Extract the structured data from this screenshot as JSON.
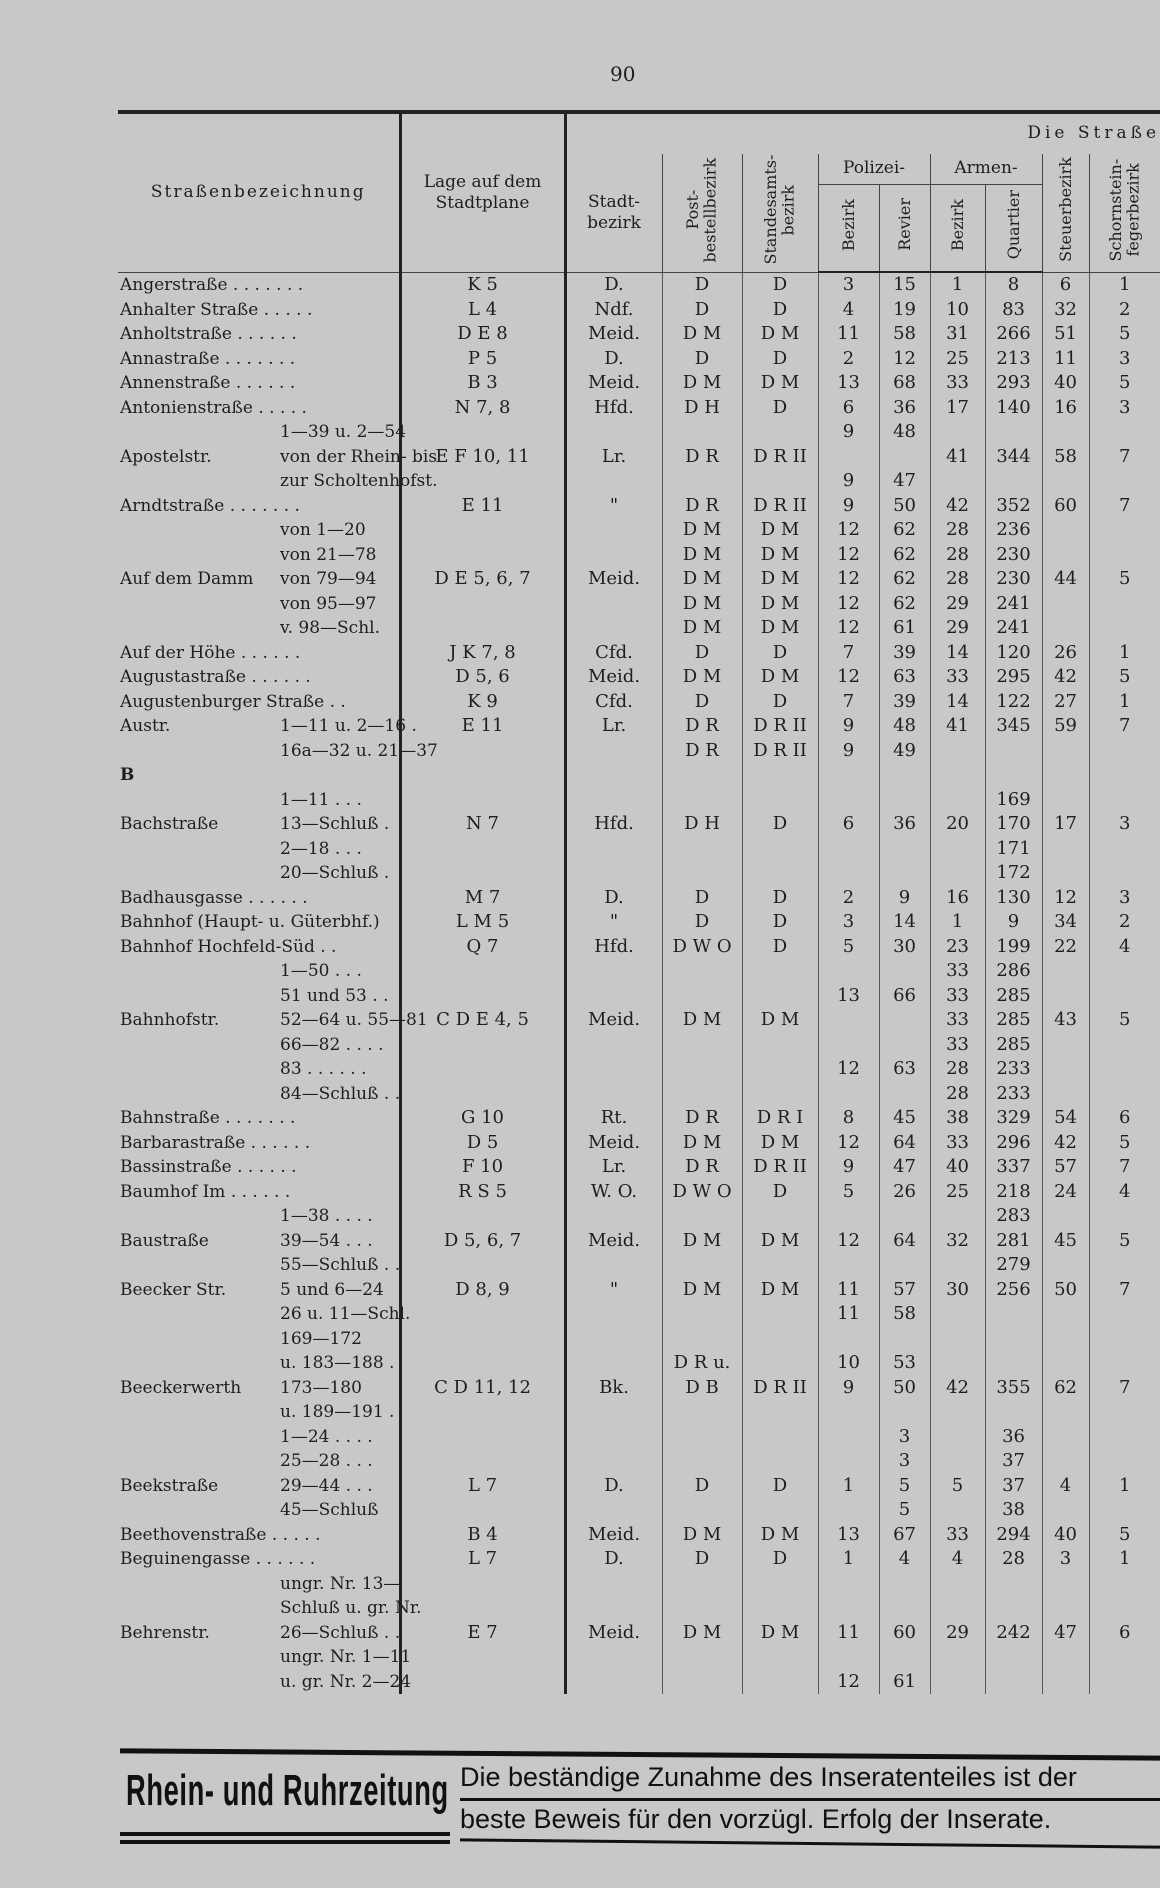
{
  "page_number": "90",
  "header": {
    "group_title": "Die Straße",
    "col_name": "Straßenbezeichnung",
    "col_lage": "Lage auf dem Stadtplane",
    "col_stadt": "Stadt- bezirk",
    "col_post": "Post- bestellbezirk",
    "col_standes": "Standesamts- bezirk",
    "polizei": "Polizei-",
    "polizei_bezirk": "Bezirk",
    "polizei_revier": "Revier",
    "armen": "Armen-",
    "armen_bezirk": "Bezirk",
    "armen_quartier": "Quartier",
    "col_steuer": "Steuerbezirk",
    "col_schorn": "Schornstein- fegerbezirk"
  },
  "rows": [
    [
      "Angerstraße . . . . . . .",
      "",
      "K 5",
      "D.",
      "D",
      "D",
      "3",
      "15",
      "1",
      "8",
      "6",
      "1"
    ],
    [
      "Anhalter Straße . . . . .",
      "",
      "L 4",
      "Ndf.",
      "D",
      "D",
      "4",
      "19",
      "10",
      "83",
      "32",
      "2"
    ],
    [
      "Anholtstraße . . . . . .",
      "",
      "D E 8",
      "Meid.",
      "D M",
      "D M",
      "11",
      "58",
      "31",
      "266",
      "51",
      "5"
    ],
    [
      "Annastraße . . . . . . .",
      "",
      "P 5",
      "D.",
      "D",
      "D",
      "2",
      "12",
      "25",
      "213",
      "11",
      "3"
    ],
    [
      "Annenstraße . . . . . .",
      "",
      "B 3",
      "Meid.",
      "D M",
      "D M",
      "13",
      "68",
      "33",
      "293",
      "40",
      "5"
    ],
    [
      "Antonienstraße . . . . .",
      "",
      "N 7, 8",
      "Hfd.",
      "D H",
      "D",
      "6",
      "36",
      "17",
      "140",
      "16",
      "3"
    ],
    [
      "",
      "1—39 u. 2—54",
      "",
      "",
      "",
      "",
      "9",
      "48",
      "",
      "",
      "",
      ""
    ],
    [
      "Apostelstr.",
      "von der Rhein- bis",
      "E F 10, 11",
      "Lr.",
      "D R",
      "D R II",
      "",
      "",
      "41",
      "344",
      "58",
      "7"
    ],
    [
      "",
      "zur Scholtenhofst.",
      "",
      "",
      "",
      "",
      "9",
      "47",
      "",
      "",
      "",
      ""
    ],
    [
      "Arndtstraße . . . . . . .",
      "",
      "E 11",
      "\"",
      "D R",
      "D R II",
      "9",
      "50",
      "42",
      "352",
      "60",
      "7"
    ],
    [
      "",
      "von 1—20",
      "",
      "",
      "D M",
      "D M",
      "12",
      "62",
      "28",
      "236",
      "",
      ""
    ],
    [
      "",
      "von 21—78",
      "",
      "",
      "D M",
      "D M",
      "12",
      "62",
      "28",
      "230",
      "",
      ""
    ],
    [
      "Auf dem Damm",
      "von 79—94",
      "D E 5, 6, 7",
      "Meid.",
      "D M",
      "D M",
      "12",
      "62",
      "28",
      "230",
      "44",
      "5"
    ],
    [
      "",
      "von 95—97",
      "",
      "",
      "D M",
      "D M",
      "12",
      "62",
      "29",
      "241",
      "",
      ""
    ],
    [
      "",
      "v. 98—Schl.",
      "",
      "",
      "D M",
      "D M",
      "12",
      "61",
      "29",
      "241",
      "",
      ""
    ],
    [
      "Auf der Höhe . . . . . .",
      "",
      "J K 7, 8",
      "Cfd.",
      "D",
      "D",
      "7",
      "39",
      "14",
      "120",
      "26",
      "1"
    ],
    [
      "Augustastraße . . . . . .",
      "",
      "D 5, 6",
      "Meid.",
      "D M",
      "D M",
      "12",
      "63",
      "33",
      "295",
      "42",
      "5"
    ],
    [
      "Augustenburger Straße . .",
      "",
      "K 9",
      "Cfd.",
      "D",
      "D",
      "7",
      "39",
      "14",
      "122",
      "27",
      "1"
    ],
    [
      "Austr.",
      "1—11 u. 2—16 .",
      "E 11",
      "Lr.",
      "D R",
      "D R II",
      "9",
      "48",
      "41",
      "345",
      "59",
      "7"
    ],
    [
      "",
      "16a—32 u. 21—37",
      "",
      "",
      "D R",
      "D R II",
      "9",
      "49",
      "",
      "",
      "",
      ""
    ],
    [
      "B",
      "",
      "",
      "",
      "",
      "",
      "",
      "",
      "",
      "",
      "",
      ""
    ],
    [
      "",
      "1—11 . . .",
      "",
      "",
      "",
      "",
      "",
      "",
      "",
      "169",
      "",
      ""
    ],
    [
      "Bachstraße",
      "13—Schluß .",
      "N 7",
      "Hfd.",
      "D H",
      "D",
      "6",
      "36",
      "20",
      "170",
      "17",
      "3"
    ],
    [
      "",
      "2—18 . . .",
      "",
      "",
      "",
      "",
      "",
      "",
      "",
      "171",
      "",
      ""
    ],
    [
      "",
      "20—Schluß .",
      "",
      "",
      "",
      "",
      "",
      "",
      "",
      "172",
      "",
      ""
    ],
    [
      "Badhausgasse . . . . . .",
      "",
      "M 7",
      "D.",
      "D",
      "D",
      "2",
      "9",
      "16",
      "130",
      "12",
      "3"
    ],
    [
      "Bahnhof (Haupt- u. Güterbhf.)",
      "",
      "L M 5",
      "\"",
      "D",
      "D",
      "3",
      "14",
      "1",
      "9",
      "34",
      "2"
    ],
    [
      "Bahnhof Hochfeld-Süd . .",
      "",
      "Q 7",
      "Hfd.",
      "D W O",
      "D",
      "5",
      "30",
      "23",
      "199",
      "22",
      "4"
    ],
    [
      "",
      "1—50 . . .",
      "",
      "",
      "",
      "",
      "",
      "",
      "33",
      "286",
      "",
      ""
    ],
    [
      "",
      "51 und 53 . .",
      "",
      "",
      "",
      "",
      "13",
      "66",
      "33",
      "285",
      "",
      ""
    ],
    [
      "Bahnhofstr.",
      "52—64 u. 55—81",
      "C D E 4, 5",
      "Meid.",
      "D M",
      "D M",
      "",
      "",
      "33",
      "285",
      "43",
      "5"
    ],
    [
      "",
      "66—82 . . . .",
      "",
      "",
      "",
      "",
      "",
      "",
      "33",
      "285",
      "",
      ""
    ],
    [
      "",
      "83 . . . . . .",
      "",
      "",
      "",
      "",
      "12",
      "63",
      "28",
      "233",
      "",
      ""
    ],
    [
      "",
      "84—Schluß . .",
      "",
      "",
      "",
      "",
      "",
      "",
      "28",
      "233",
      "",
      ""
    ],
    [
      "Bahnstraße . . . . . . .",
      "",
      "G 10",
      "Rt.",
      "D R",
      "D R I",
      "8",
      "45",
      "38",
      "329",
      "54",
      "6"
    ],
    [
      "Barbarastraße . . . . . .",
      "",
      "D 5",
      "Meid.",
      "D M",
      "D M",
      "12",
      "64",
      "33",
      "296",
      "42",
      "5"
    ],
    [
      "Bassinstraße . . . . . .",
      "",
      "F 10",
      "Lr.",
      "D R",
      "D R II",
      "9",
      "47",
      "40",
      "337",
      "57",
      "7"
    ],
    [
      "Baumhof Im . . . . . .",
      "",
      "R S 5",
      "W. O.",
      "D W O",
      "D",
      "5",
      "26",
      "25",
      "218",
      "24",
      "4"
    ],
    [
      "",
      "1—38 . . . .",
      "",
      "",
      "",
      "",
      "",
      "",
      "",
      "283",
      "",
      ""
    ],
    [
      "Baustraße",
      "39—54 . . .",
      "D 5, 6, 7",
      "Meid.",
      "D M",
      "D M",
      "12",
      "64",
      "32",
      "281",
      "45",
      "5"
    ],
    [
      "",
      "55—Schluß . .",
      "",
      "",
      "",
      "",
      "",
      "",
      "",
      "279",
      "",
      ""
    ],
    [
      "Beecker Str.",
      "5 und 6—24",
      "D 8, 9",
      "\"",
      "D M",
      "D M",
      "11",
      "57",
      "30",
      "256",
      "50",
      "7"
    ],
    [
      "",
      "26 u. 11—Schl.",
      "",
      "",
      "",
      "",
      "11",
      "58",
      "",
      "",
      "",
      ""
    ],
    [
      "",
      "169—172",
      "",
      "",
      "",
      "",
      "",
      "",
      "",
      "",
      "",
      ""
    ],
    [
      "",
      "u. 183—188 .",
      "",
      "",
      "D R u.",
      "",
      "10",
      "53",
      "",
      "",
      "",
      ""
    ],
    [
      "Beeckerwerth",
      "173—180",
      "C D 11, 12",
      "Bk.",
      "D B",
      "D R II",
      "9",
      "50",
      "42",
      "355",
      "62",
      "7"
    ],
    [
      "",
      "u. 189—191 .",
      "",
      "",
      "",
      "",
      "",
      "",
      "",
      "",
      "",
      ""
    ],
    [
      "",
      "1—24 . . . .",
      "",
      "",
      "",
      "",
      "",
      "3",
      "",
      "36",
      "",
      ""
    ],
    [
      "",
      "25—28 . . .",
      "",
      "",
      "",
      "",
      "",
      "3",
      "",
      "37",
      "",
      ""
    ],
    [
      "Beekstraße",
      "29—44 . . .",
      "L 7",
      "D.",
      "D",
      "D",
      "1",
      "5",
      "5",
      "37",
      "4",
      "1"
    ],
    [
      "",
      "45—Schluß",
      "",
      "",
      "",
      "",
      "",
      "5",
      "",
      "38",
      "",
      ""
    ],
    [
      "Beethovenstraße . . . . .",
      "",
      "B 4",
      "Meid.",
      "D M",
      "D M",
      "13",
      "67",
      "33",
      "294",
      "40",
      "5"
    ],
    [
      "Beguinengasse . . . . . .",
      "",
      "L 7",
      "D.",
      "D",
      "D",
      "1",
      "4",
      "4",
      "28",
      "3",
      "1"
    ],
    [
      "",
      "ungr. Nr. 13—",
      "",
      "",
      "",
      "",
      "",
      "",
      "",
      "",
      "",
      ""
    ],
    [
      "",
      "Schluß u. gr. Nr.",
      "",
      "",
      "",
      "",
      "",
      "",
      "",
      "",
      "",
      ""
    ],
    [
      "Behrenstr.",
      "26—Schluß . .",
      "E 7",
      "Meid.",
      "D M",
      "D M",
      "11",
      "60",
      "29",
      "242",
      "47",
      "6"
    ],
    [
      "",
      "ungr. Nr. 1—11",
      "",
      "",
      "",
      "",
      "",
      "",
      "",
      "",
      "",
      ""
    ],
    [
      "",
      "u. gr. Nr. 2—24",
      "",
      "",
      "",
      "",
      "12",
      "61",
      "",
      "",
      "",
      ""
    ]
  ],
  "advertisement": {
    "logo_text": "Rhein- und Ruhrzeitung",
    "line1": "Die beständige Zunahme des Inseratenteiles ist der",
    "line2": "beste Beweis für den vorzügl. Erfolg der Inserate."
  }
}
